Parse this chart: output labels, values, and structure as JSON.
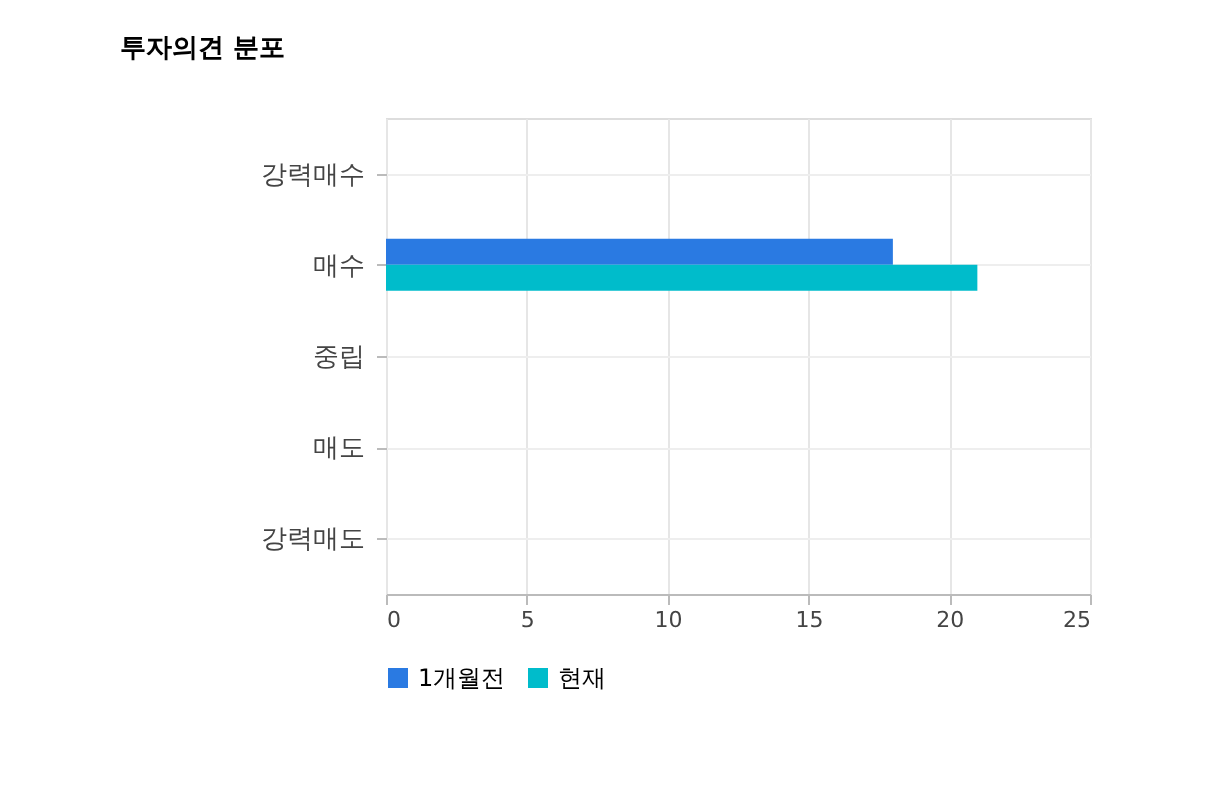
{
  "chart_data": {
    "type": "bar",
    "orientation": "horizontal",
    "title": "투자의견 분포",
    "categories": [
      "강력매수",
      "매수",
      "중립",
      "매도",
      "강력매도"
    ],
    "series": [
      {
        "name": "1개월전",
        "color": "#2a7ae2",
        "values": [
          0,
          18,
          0,
          0,
          0
        ]
      },
      {
        "name": "현재",
        "color": "#00bccb",
        "values": [
          0,
          21,
          0,
          0,
          0
        ]
      }
    ],
    "xlim": [
      0,
      25
    ],
    "xticks": [
      0,
      5,
      10,
      15,
      20,
      25
    ],
    "grid": true,
    "legend": "bottom"
  }
}
